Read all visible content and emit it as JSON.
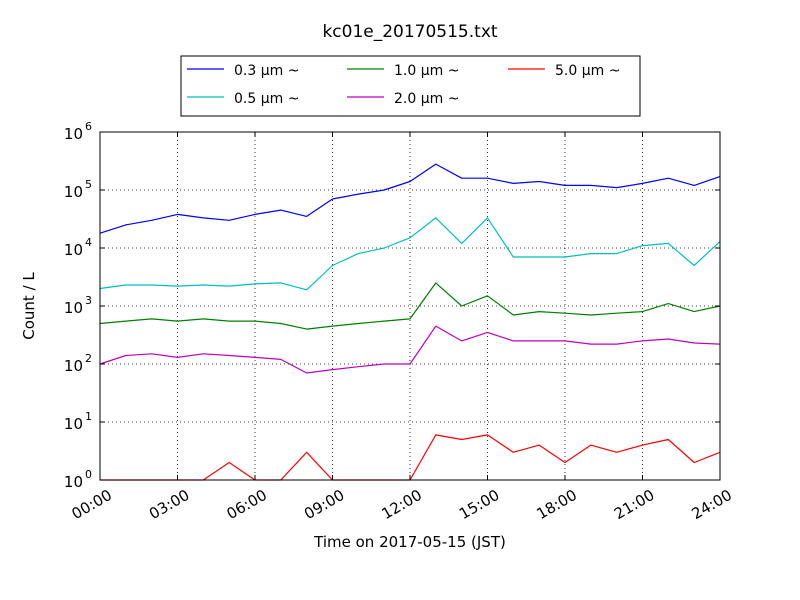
{
  "chart_data": {
    "type": "line",
    "title": "kc01e_20170515.txt",
    "xlabel": "Time on 2017-05-15 (JST)",
    "ylabel": "Count / L",
    "yscale": "log",
    "ylim": [
      1,
      1000000
    ],
    "xlim": [
      "2017-05-15 00:00",
      "2017-05-16 00:00"
    ],
    "grid": true,
    "legend_position": "top-center",
    "x_tick_labels": [
      "00:00",
      "03:00",
      "06:00",
      "09:00",
      "12:00",
      "15:00",
      "18:00",
      "21:00",
      "24:00"
    ],
    "y_tick_labels": [
      {
        "base": "10",
        "exp": "0"
      },
      {
        "base": "10",
        "exp": "1"
      },
      {
        "base": "10",
        "exp": "2"
      },
      {
        "base": "10",
        "exp": "3"
      },
      {
        "base": "10",
        "exp": "4"
      },
      {
        "base": "10",
        "exp": "5"
      },
      {
        "base": "10",
        "exp": "6"
      }
    ],
    "x": [
      "00:00",
      "01:00",
      "02:00",
      "03:00",
      "04:00",
      "05:00",
      "06:00",
      "07:00",
      "08:00",
      "09:00",
      "10:00",
      "11:00",
      "12:00",
      "13:00",
      "14:00",
      "15:00",
      "16:00",
      "17:00",
      "18:00",
      "19:00",
      "20:00",
      "21:00",
      "22:00",
      "23:00",
      "24:00"
    ],
    "series": [
      {
        "name": "0.3 μm ~",
        "color": "#0000ff",
        "values": [
          18000,
          25000,
          30000,
          38000,
          33000,
          30000,
          38000,
          45000,
          35000,
          70000,
          85000,
          100000,
          140000,
          280000,
          160000,
          160000,
          130000,
          140000,
          120000,
          120000,
          110000,
          130000,
          160000,
          120000,
          170000
        ]
      },
      {
        "name": "0.5 μm ~",
        "color": "#00bfbf",
        "values": [
          2000,
          2300,
          2300,
          2200,
          2300,
          2200,
          2400,
          2500,
          1900,
          5000,
          8000,
          10000,
          15000,
          33000,
          12000,
          33000,
          7000,
          7000,
          7000,
          8000,
          8000,
          11000,
          12000,
          5000,
          13000
        ]
      },
      {
        "name": "1.0 μm ~",
        "color": "#008000",
        "values": [
          500,
          550,
          600,
          550,
          600,
          550,
          550,
          500,
          400,
          450,
          500,
          550,
          600,
          2500,
          1000,
          1500,
          700,
          800,
          750,
          700,
          750,
          800,
          1100,
          800,
          1000
        ]
      },
      {
        "name": "2.0 μm ~",
        "color": "#bf00bf",
        "values": [
          100,
          140,
          150,
          130,
          150,
          140,
          130,
          120,
          70,
          80,
          90,
          100,
          100,
          450,
          250,
          350,
          250,
          250,
          250,
          220,
          220,
          250,
          270,
          230,
          220
        ]
      },
      {
        "name": "5.0 μm ~",
        "color": "#ff0000",
        "values": [
          1,
          1,
          1,
          1,
          1,
          2,
          1,
          1,
          3,
          1,
          1,
          1,
          1,
          6,
          5,
          6,
          3,
          4,
          2,
          4,
          3,
          4,
          5,
          2,
          3
        ]
      }
    ]
  }
}
